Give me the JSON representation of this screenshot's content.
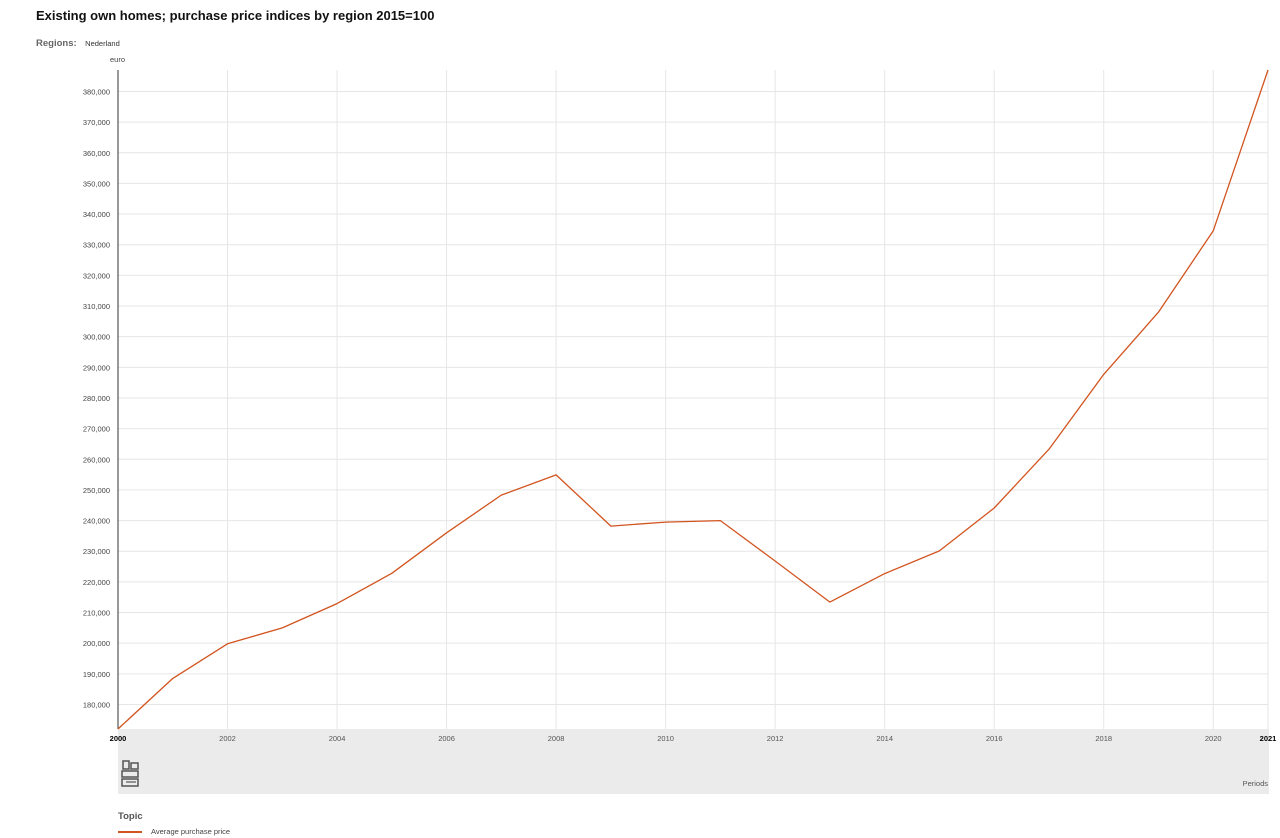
{
  "header": {
    "title": "Existing own homes; purchase price indices by region 2015=100",
    "regions_label": "Regions:",
    "regions_value": "Nederland"
  },
  "colors": {
    "series": "#d2541f",
    "grid": "#e6e6e6",
    "axis_band": "#ebebeb"
  },
  "logo_icon": "cbs-logo-icon",
  "x_axis_title": "Periods",
  "legend": {
    "title": "Topic",
    "items": [
      "Average purchase price"
    ]
  },
  "chart_data": {
    "type": "line",
    "title": "Existing own homes; purchase price indices by region 2015=100",
    "ylabel": "euro",
    "xlabel": "Periods",
    "ylim": [
      172000,
      387000
    ],
    "xlim": [
      2000,
      2021
    ],
    "y_ticks": [
      180000,
      190000,
      200000,
      210000,
      220000,
      230000,
      240000,
      250000,
      260000,
      270000,
      280000,
      290000,
      300000,
      310000,
      320000,
      330000,
      340000,
      350000,
      360000,
      370000,
      380000
    ],
    "y_tick_labels": [
      "180,000",
      "190,000",
      "200,000",
      "210,000",
      "220,000",
      "230,000",
      "240,000",
      "250,000",
      "260,000",
      "270,000",
      "280,000",
      "290,000",
      "300,000",
      "310,000",
      "320,000",
      "330,000",
      "340,000",
      "350,000",
      "360,000",
      "370,000",
      "380,000"
    ],
    "x_ticks": [
      2000,
      2002,
      2004,
      2006,
      2008,
      2010,
      2012,
      2014,
      2016,
      2018,
      2020,
      2021
    ],
    "x_tick_labels": [
      "2000",
      "2002",
      "2004",
      "2006",
      "2008",
      "2010",
      "2012",
      "2014",
      "2016",
      "2018",
      "2020",
      "2021"
    ],
    "bold_x_ticks": [
      "2000",
      "2021"
    ],
    "grid": true,
    "legend_position": "bottom-left",
    "series": [
      {
        "name": "Average purchase price",
        "x": [
          2000,
          2001,
          2002,
          2003,
          2004,
          2005,
          2006,
          2007,
          2008,
          2009,
          2010,
          2011,
          2012,
          2013,
          2014,
          2015,
          2016,
          2017,
          2018,
          2019,
          2020,
          2021
        ],
        "values": [
          172000,
          188500,
          199800,
          205000,
          212900,
          222800,
          236000,
          248300,
          254900,
          238200,
          239500,
          240000,
          226800,
          213400,
          222700,
          230100,
          244100,
          263300,
          287700,
          308000,
          334500,
          387000
        ]
      }
    ]
  }
}
